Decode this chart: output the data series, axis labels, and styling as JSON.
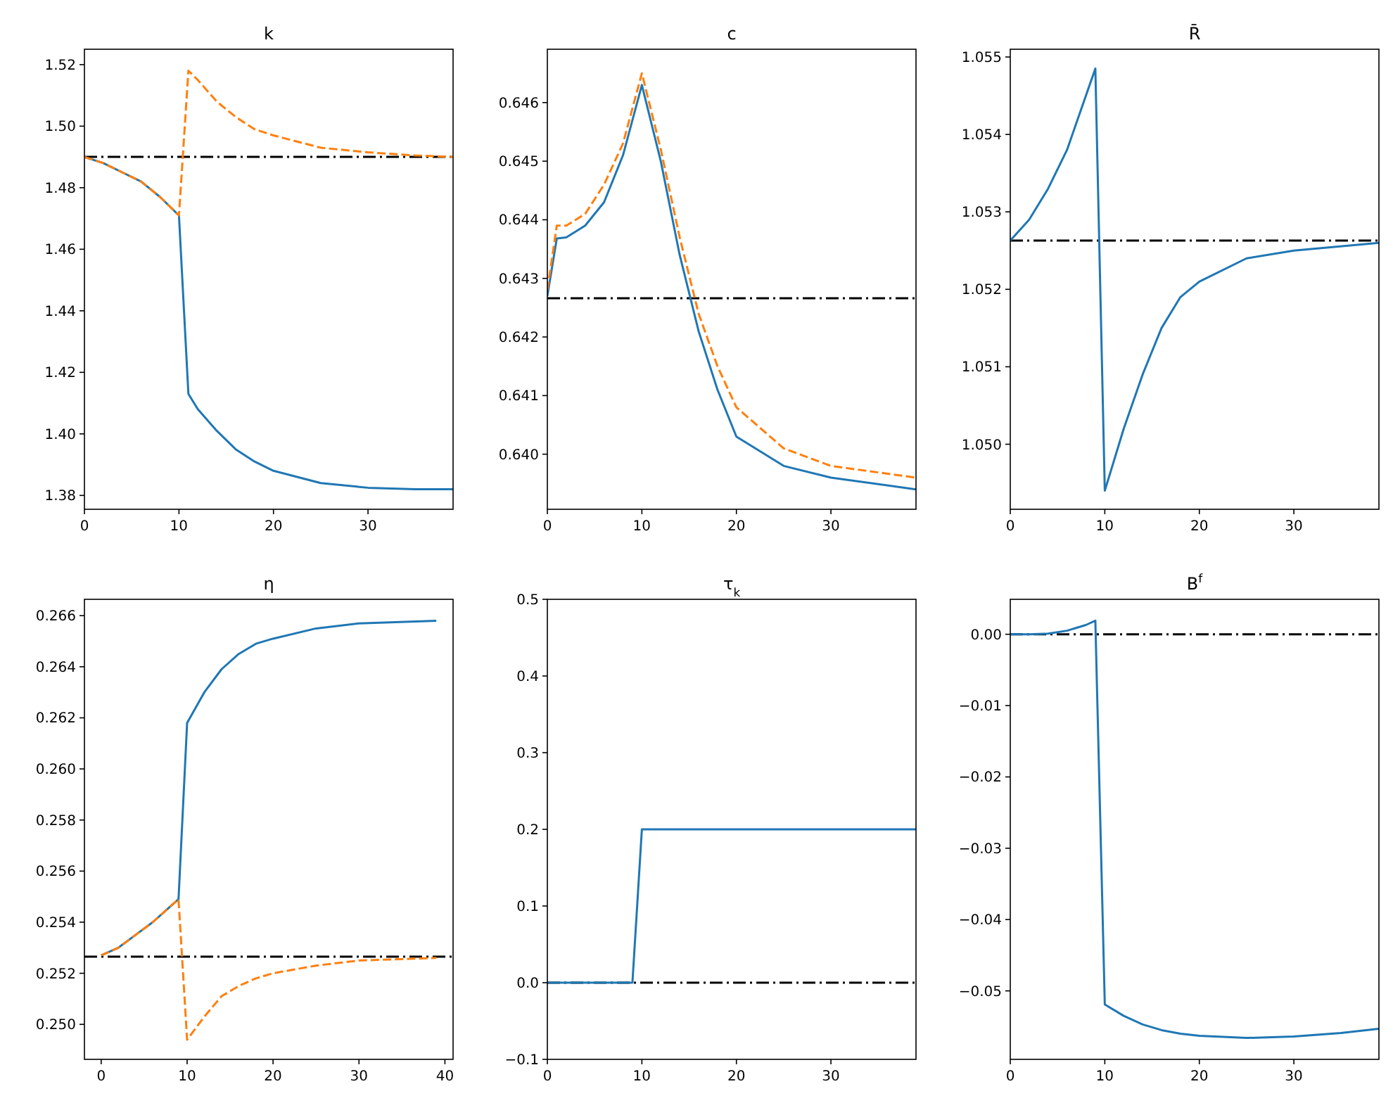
{
  "chart_data": [
    {
      "type": "line",
      "title": "k",
      "xlim": [
        0,
        39
      ],
      "xticks": [
        0,
        10,
        20,
        30
      ],
      "ylim": [
        1.3755,
        1.525
      ],
      "yticks": [
        {
          "value": 1.38,
          "label": "1.38"
        },
        {
          "value": 1.4,
          "label": "1.40"
        },
        {
          "value": 1.42,
          "label": "1.42"
        },
        {
          "value": 1.44,
          "label": "1.44"
        },
        {
          "value": 1.46,
          "label": "1.46"
        },
        {
          "value": 1.48,
          "label": "1.48"
        },
        {
          "value": 1.5,
          "label": "1.50"
        },
        {
          "value": 1.52,
          "label": "1.52"
        }
      ],
      "series": [
        {
          "color": "#1f77b4",
          "line_style": "solid",
          "x": [
            0,
            2,
            4,
            6,
            8,
            10,
            11,
            12,
            14,
            16,
            18,
            20,
            25,
            30,
            35,
            39
          ],
          "values": [
            1.49,
            1.488,
            1.485,
            1.482,
            1.477,
            1.471,
            1.413,
            1.408,
            1.401,
            1.395,
            1.391,
            1.388,
            1.384,
            1.3825,
            1.382,
            1.382
          ]
        },
        {
          "color": "#ff7f0e",
          "line_style": "dashed",
          "x": [
            0,
            2,
            4,
            6,
            8,
            10,
            11,
            12,
            14,
            16,
            18,
            20,
            25,
            30,
            35,
            39
          ],
          "values": [
            1.49,
            1.488,
            1.485,
            1.482,
            1.477,
            1.471,
            1.518,
            1.515,
            1.508,
            1.503,
            1.499,
            1.497,
            1.493,
            1.4915,
            1.4905,
            1.49
          ]
        }
      ],
      "ref_lines": [
        {
          "axis": "y",
          "value": 1.49,
          "color": "#000000",
          "line_style": "dashdot"
        }
      ]
    },
    {
      "type": "line",
      "title": "c",
      "xlim": [
        0,
        39
      ],
      "xticks": [
        0,
        10,
        20,
        30
      ],
      "ylim": [
        0.63906,
        0.64691
      ],
      "yticks": [
        {
          "value": 0.64,
          "label": "0.640"
        },
        0.641,
        0.642,
        0.643,
        0.644,
        0.645,
        0.646
      ],
      "series": [
        {
          "color": "#1f77b4",
          "line_style": "solid",
          "x": [
            0,
            1,
            2,
            4,
            6,
            8,
            10,
            12,
            14,
            16,
            18,
            20,
            25,
            30,
            39
          ],
          "values": [
            0.6427,
            0.64368,
            0.6437,
            0.6439,
            0.6443,
            0.6451,
            0.6463,
            0.645,
            0.6434,
            0.6421,
            0.6411,
            0.6403,
            0.6398,
            0.6396,
            0.6394
          ]
        },
        {
          "color": "#ff7f0e",
          "line_style": "dashed",
          "x": [
            0,
            1,
            2,
            4,
            6,
            8,
            10,
            12,
            14,
            16,
            18,
            20,
            25,
            30,
            39
          ],
          "values": [
            0.6428,
            0.6439,
            0.6439,
            0.6441,
            0.6446,
            0.6453,
            0.6465,
            0.6452,
            0.6437,
            0.6424,
            0.6415,
            0.6408,
            0.6401,
            0.6398,
            0.6396
          ]
        }
      ],
      "ref_lines": [
        {
          "axis": "y",
          "value": 0.64266,
          "color": "#000000",
          "line_style": "dashdot"
        }
      ]
    },
    {
      "type": "line",
      "title": "R̄",
      "xlim": [
        0,
        39
      ],
      "xticks": [
        0,
        10,
        20,
        30
      ],
      "ylim": [
        1.04916,
        1.0551
      ],
      "yticks": [
        {
          "value": 1.05,
          "label": "1.050"
        },
        1.051,
        1.052,
        1.053,
        1.054,
        1.055
      ],
      "series": [
        {
          "color": "#1f77b4",
          "line_style": "solid",
          "x": [
            0,
            2,
            4,
            6,
            8,
            9,
            10,
            12,
            14,
            16,
            18,
            20,
            25,
            30,
            39
          ],
          "values": [
            1.05263,
            1.0529,
            1.0533,
            1.0538,
            1.0545,
            1.05485,
            1.0494,
            1.0502,
            1.0509,
            1.0515,
            1.0519,
            1.0521,
            1.0524,
            1.0525,
            1.0526
          ]
        }
      ],
      "ref_lines": [
        {
          "axis": "y",
          "value": 1.05263,
          "color": "#000000",
          "line_style": "dashdot"
        }
      ]
    },
    {
      "type": "line",
      "title": "η",
      "xlim": [
        -1.95,
        40.95
      ],
      "xticks": [
        0,
        10,
        20,
        30,
        40
      ],
      "ylim": [
        0.24863,
        0.26664
      ],
      "yticks": [
        {
          "value": 0.25,
          "label": "0.250"
        },
        0.252,
        0.254,
        0.256,
        0.258,
        {
          "value": 0.26,
          "label": "0.260"
        },
        0.262,
        0.264,
        0.266
      ],
      "series": [
        {
          "color": "#1f77b4",
          "line_style": "solid",
          "x": [
            0,
            2,
            4,
            6,
            8,
            9,
            10,
            12,
            14,
            16,
            18,
            20,
            25,
            30,
            39
          ],
          "values": [
            0.2527,
            0.253,
            0.2535,
            0.254,
            0.2546,
            0.2549,
            0.2618,
            0.263,
            0.2639,
            0.2645,
            0.2649,
            0.2651,
            0.2655,
            0.2657,
            0.2658
          ]
        },
        {
          "color": "#ff7f0e",
          "line_style": "dashed",
          "x": [
            0,
            2,
            4,
            6,
            8,
            9,
            10,
            12,
            14,
            16,
            18,
            20,
            25,
            30,
            39
          ],
          "values": [
            0.2527,
            0.253,
            0.2535,
            0.254,
            0.2546,
            0.2549,
            0.2494,
            0.2503,
            0.2511,
            0.2515,
            0.2518,
            0.252,
            0.2523,
            0.2525,
            0.2526
          ]
        }
      ],
      "ref_lines": [
        {
          "axis": "y",
          "value": 0.25265,
          "color": "#000000",
          "line_style": "dashdot"
        }
      ]
    },
    {
      "type": "line",
      "title": "τ$_{k}$",
      "xlim": [
        0,
        39
      ],
      "xticks": [
        0,
        10,
        20,
        30
      ],
      "ylim": [
        -0.1,
        0.5
      ],
      "yticks": [
        {
          "value": -0.1,
          "label": "−0.1"
        },
        {
          "value": 0,
          "label": "0.0"
        },
        0.1,
        0.2,
        0.3,
        0.4,
        0.5
      ],
      "series": [
        {
          "color": "#1f77b4",
          "line_style": "solid",
          "x": [
            0,
            9,
            10,
            39
          ],
          "values": [
            0,
            0,
            0.2,
            0.2
          ]
        }
      ],
      "ref_lines": [
        {
          "axis": "y",
          "value": 0,
          "color": "#000000",
          "line_style": "dashdot"
        }
      ]
    },
    {
      "type": "line",
      "title": "B$^{f}$",
      "xlim": [
        0,
        39
      ],
      "xticks": [
        0,
        10,
        20,
        30
      ],
      "ylim": [
        -0.0596,
        0.0049
      ],
      "yticks": [
        {
          "value": -0.05,
          "label": "−0.05"
        },
        {
          "value": -0.04,
          "label": "−0.04"
        },
        {
          "value": -0.03,
          "label": "−0.03"
        },
        {
          "value": -0.02,
          "label": "−0.02"
        },
        {
          "value": -0.01,
          "label": "−0.01"
        },
        {
          "value": 0,
          "label": "0.00"
        }
      ],
      "series": [
        {
          "color": "#1f77b4",
          "line_style": "solid",
          "x": [
            0,
            2,
            4,
            6,
            8,
            9,
            10,
            12,
            14,
            16,
            18,
            20,
            25,
            30,
            35,
            39
          ],
          "values": [
            0,
            0,
            0.0001,
            0.0005,
            0.0013,
            0.0019,
            -0.0519,
            -0.0535,
            -0.0547,
            -0.0555,
            -0.056,
            -0.0563,
            -0.0566,
            -0.0564,
            -0.0559,
            -0.0553
          ]
        }
      ],
      "ref_lines": [
        {
          "axis": "y",
          "value": 0,
          "color": "#000000",
          "line_style": "dashdot"
        }
      ]
    }
  ]
}
